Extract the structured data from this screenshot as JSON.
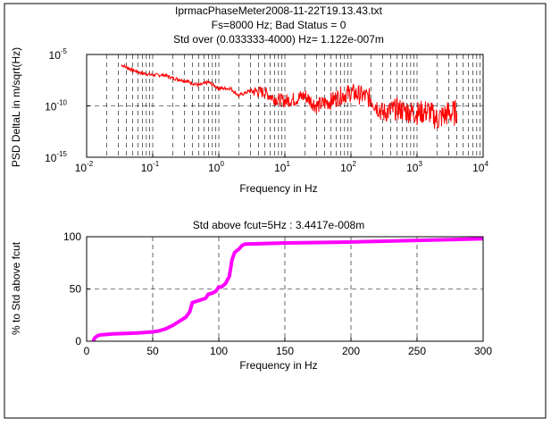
{
  "colors": {
    "background": "#ffffff",
    "psd_line": "#ff0000",
    "cumulative_line": "#ff00ff",
    "axes": "#000000"
  },
  "chart_data": [
    {
      "type": "line",
      "title_lines": [
        "IprmacPhaseMeter2008-11-22T19.13.43.txt",
        "Fs=8000 Hz; Bad Status = 0",
        "Std over (0.033333-4000) Hz= 1.122e-007m"
      ],
      "xlabel": "Frequency in Hz",
      "ylabel": "PSD DeltaL in m/sqrt(Hz)",
      "xscale": "log",
      "yscale": "log",
      "xlim": [
        0.01,
        10000
      ],
      "ylim": [
        1e-15,
        1e-05
      ],
      "x_ticks": [
        {
          "value": 0.01,
          "base": "10",
          "exp": "-2"
        },
        {
          "value": 0.1,
          "base": "10",
          "exp": "-1"
        },
        {
          "value": 1,
          "base": "10",
          "exp": "0"
        },
        {
          "value": 10,
          "base": "10",
          "exp": "1"
        },
        {
          "value": 100,
          "base": "10",
          "exp": "2"
        },
        {
          "value": 1000,
          "base": "10",
          "exp": "3"
        },
        {
          "value": 10000,
          "base": "10",
          "exp": "4"
        }
      ],
      "y_ticks": [
        {
          "value": 1e-15,
          "base": "10",
          "exp": "-15"
        },
        {
          "value": 1e-10,
          "base": "10",
          "exp": "-10"
        },
        {
          "value": 1e-05,
          "base": "10",
          "exp": "-5"
        }
      ],
      "grid": true,
      "series": [
        {
          "color": "#ff0000",
          "x": [
            0.0333,
            0.05,
            0.07,
            0.1,
            0.15,
            0.2,
            0.3,
            0.5,
            0.7,
            1,
            1.5,
            2,
            3,
            5,
            7,
            10,
            15,
            20,
            30,
            50,
            70,
            100,
            150,
            200,
            300,
            500,
            700,
            1000,
            1500,
            2000,
            3000,
            4000
          ],
          "y": [
            1e-06,
            3e-07,
            1.5e-07,
            1e-07,
            1e-07,
            5e-08,
            3e-08,
            1e-08,
            2e-08,
            5e-09,
            5e-09,
            1e-09,
            3e-09,
            2e-09,
            5e-10,
            3e-10,
            5e-10,
            1e-09,
            1e-10,
            3e-10,
            1e-09,
            2e-09,
            1e-09,
            5e-10,
            2e-11,
            5e-11,
            3e-11,
            2e-11,
            3e-11,
            5e-12,
            2e-11,
            2e-11
          ]
        }
      ]
    },
    {
      "type": "line",
      "title": "Std above fcut=5Hz : 3.4417e-008m",
      "xlabel": "Frequency in Hz",
      "ylabel": "% to Std above fcut",
      "xlim": [
        0,
        300
      ],
      "ylim": [
        0,
        100
      ],
      "x_ticks": [
        0,
        50,
        100,
        150,
        200,
        250,
        300
      ],
      "y_ticks": [
        0,
        50,
        100
      ],
      "grid": true,
      "series": [
        {
          "color": "#ff00ff",
          "x": [
            5,
            6,
            8,
            10,
            20,
            30,
            40,
            50,
            55,
            60,
            65,
            70,
            75,
            78,
            80,
            85,
            90,
            92,
            95,
            98,
            100,
            102,
            105,
            108,
            110,
            112,
            115,
            118,
            120,
            150,
            200,
            250,
            300
          ],
          "y": [
            0,
            3,
            5,
            6,
            7,
            7.5,
            8,
            9,
            10,
            12,
            15,
            19,
            23,
            28,
            37,
            39,
            41,
            45,
            46,
            48,
            52,
            52,
            55,
            62,
            78,
            85,
            88,
            92,
            93,
            94,
            95,
            96.5,
            98
          ]
        }
      ]
    }
  ]
}
